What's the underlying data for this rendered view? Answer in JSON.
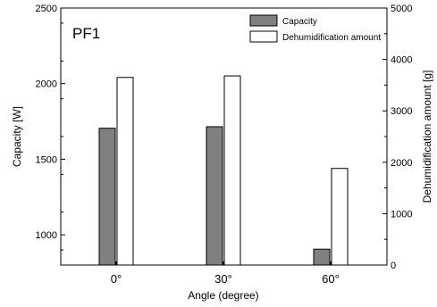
{
  "chart_data": {
    "type": "bar",
    "panel_label": "PF1",
    "categories": [
      "0°",
      "30°",
      "60°"
    ],
    "xlabel": "Angle (degree)",
    "ylabel_left": "Capacity [W]",
    "ylabel_right": "Dehumidification amount [g]",
    "ylim_left": [
      800,
      2500
    ],
    "ylim_right": [
      0,
      5000
    ],
    "yticks_left": [
      1000,
      1500,
      2000,
      2500
    ],
    "yticks_right": [
      0,
      1000,
      2000,
      3000,
      4000,
      5000
    ],
    "series": [
      {
        "name": "Capacity",
        "axis": "left",
        "values": [
          1705,
          1715,
          905
        ],
        "color": "#808080"
      },
      {
        "name": "Dehumidification amount",
        "axis": "right",
        "values": [
          3650,
          3680,
          1880
        ],
        "color": "#ffffff"
      }
    ],
    "legend_placement": "top-right",
    "grid": false
  }
}
